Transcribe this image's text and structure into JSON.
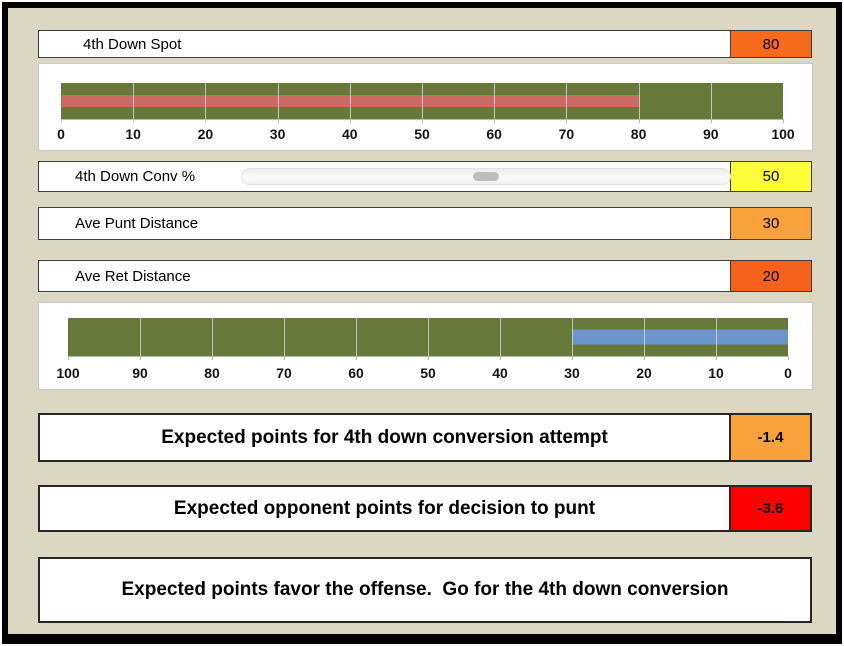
{
  "inputs": [
    {
      "label": "4th Down Spot",
      "value": "80",
      "value_bg": "#F66A1C"
    },
    {
      "label": "4th Down Conv %",
      "value": "50",
      "value_bg": "#FDFD3A"
    },
    {
      "label": "Ave Punt Distance",
      "value": "30",
      "value_bg": "#F9A23B"
    },
    {
      "label": "Ave Ret Distance",
      "value": "20",
      "value_bg": "#F6611B"
    }
  ],
  "slider": {
    "percent": 50
  },
  "results": [
    {
      "label": "Expected points for 4th down conversion attempt",
      "value": "-1.4",
      "value_bg": "#F9A23B"
    },
    {
      "label": "Expected opponent points for decision to punt",
      "value": "-3.6",
      "value_bg": "#FE0000"
    }
  ],
  "recommendation": "Expected points favor the offense.  Go for the 4th down conversion",
  "colors": {
    "background_tan": "#DBD7C3",
    "field_green": "#66793A",
    "spot_salmon": "#CA6A63",
    "punt_blue": "#6C95CC"
  },
  "chart_data": [
    {
      "type": "bar",
      "orientation": "horizontal",
      "title": "",
      "series": [
        {
          "name": "Field (plot area fill)",
          "value": 100,
          "color": "#66793A"
        },
        {
          "name": "4th Down Spot",
          "value": 80,
          "color": "#CA6A63"
        }
      ],
      "axis": {
        "min": 0,
        "max": 100,
        "step": 10,
        "reversed": false,
        "tick_labels": [
          "0",
          "10",
          "20",
          "30",
          "40",
          "50",
          "60",
          "70",
          "80",
          "90",
          "100"
        ]
      },
      "grid": true,
      "legend": "none"
    },
    {
      "type": "bar",
      "orientation": "horizontal",
      "title": "",
      "series": [
        {
          "name": "Field (plot area fill)",
          "value": 100,
          "color": "#66793A"
        },
        {
          "name": "Net punt field position",
          "value": 30,
          "color": "#6C95CC"
        }
      ],
      "axis": {
        "min": 0,
        "max": 100,
        "step": 10,
        "reversed": true,
        "tick_labels": [
          "100",
          "90",
          "80",
          "70",
          "60",
          "50",
          "40",
          "30",
          "20",
          "10",
          "0"
        ]
      },
      "grid": true,
      "legend": "none"
    }
  ]
}
